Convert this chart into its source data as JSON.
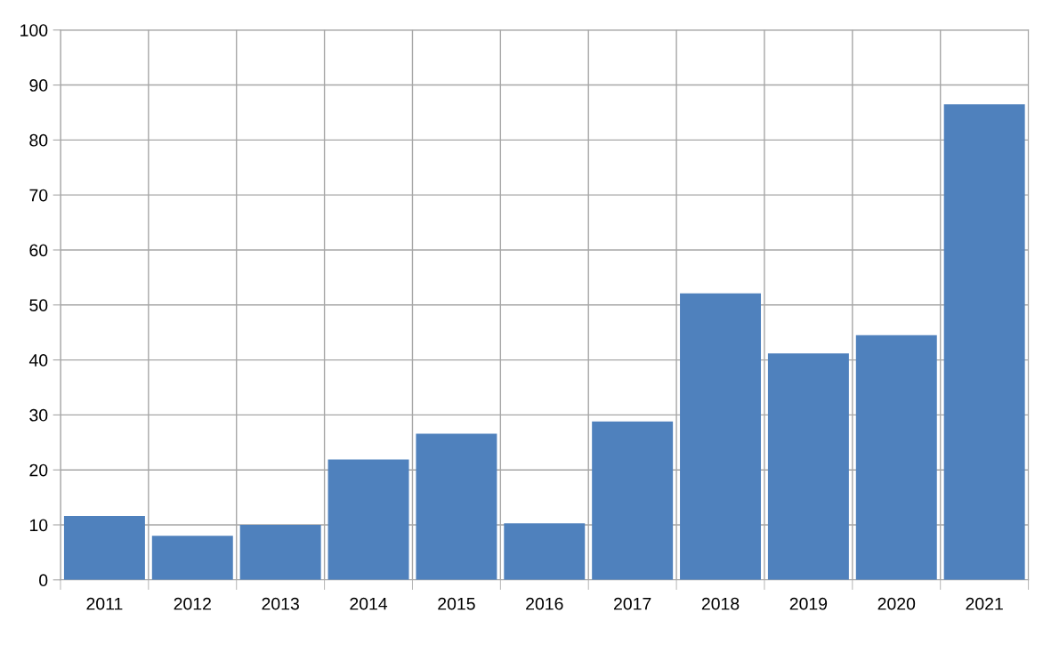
{
  "chart_data": {
    "type": "bar",
    "categories": [
      "2011",
      "2012",
      "2013",
      "2014",
      "2015",
      "2016",
      "2017",
      "2018",
      "2019",
      "2020",
      "2021"
    ],
    "values": [
      11.6,
      8.0,
      10.0,
      21.9,
      26.6,
      10.3,
      28.8,
      52.1,
      41.2,
      44.5,
      86.5
    ],
    "color": "#4f81bd",
    "ylim": [
      0,
      100
    ],
    "yticks": [
      0,
      10,
      20,
      30,
      40,
      50,
      60,
      70,
      80,
      90,
      100
    ],
    "grid": true,
    "legend": false
  }
}
